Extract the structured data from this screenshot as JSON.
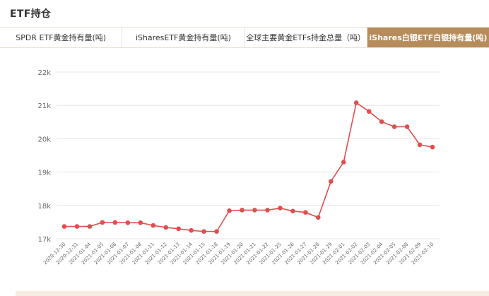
{
  "section_title": "ETF持仓",
  "tabs": [
    {
      "label": "SPDR ETF黄金持有量(吨)",
      "active": false
    },
    {
      "label": "iSharesETF黄金持有量(吨)",
      "active": false
    },
    {
      "label": "全球主要黄金ETFs持金总量（吨）",
      "active": false
    },
    {
      "label": "iShares白银ETF白银持有量(吨)",
      "active": true
    }
  ],
  "colors": {
    "accent_tab": "#b68c5a",
    "series_line": "#e04e4e"
  },
  "chart_data": {
    "type": "line",
    "x": [
      "2020-12-30",
      "2020-12-31",
      "2021-01-04",
      "2021-01-05",
      "2021-01-06",
      "2021-01-07",
      "2021-01-08",
      "2021-01-11",
      "2021-01-12",
      "2021-01-13",
      "2021-01-14",
      "2021-01-15",
      "2021-01-18",
      "2021-01-19",
      "2021-01-20",
      "2021-01-21",
      "2021-01-22",
      "2021-01-25",
      "2021-01-26",
      "2021-01-27",
      "2021-01-28",
      "2021-01-29",
      "2021-02-01",
      "2021-02-02",
      "2021-02-03",
      "2021-02-04",
      "2021-02-05",
      "2021-02-08",
      "2021-02-09",
      "2021-02-10"
    ],
    "values": [
      17370,
      17370,
      17370,
      17490,
      17490,
      17480,
      17480,
      17400,
      17340,
      17300,
      17250,
      17220,
      17220,
      17840,
      17860,
      17860,
      17860,
      17920,
      17830,
      17790,
      17640,
      18720,
      19300,
      21080,
      20820,
      20510,
      20360,
      20360,
      19820,
      19750
    ],
    "yticks": [
      17000,
      18000,
      19000,
      20000,
      21000,
      22000
    ],
    "ytick_labels": [
      "17k",
      "18k",
      "19k",
      "20k",
      "21k",
      "22k"
    ],
    "ylim": [
      17000,
      22000
    ],
    "grid": true
  }
}
